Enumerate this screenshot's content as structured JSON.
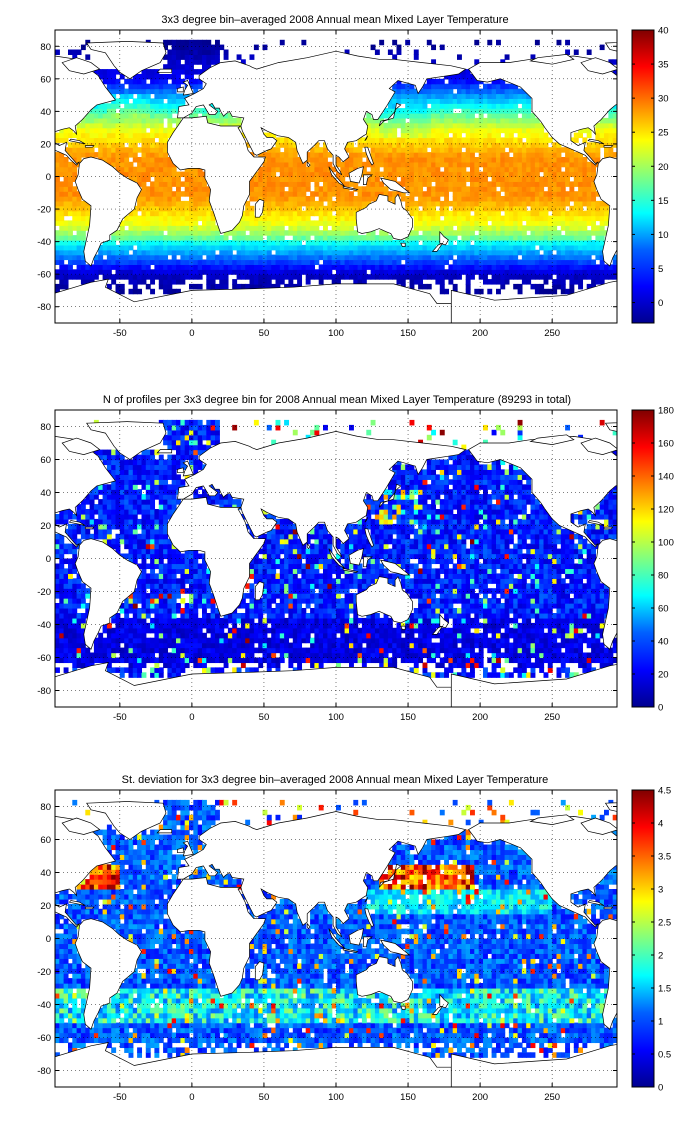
{
  "colormap": [
    "#00008f",
    "#0000ff",
    "#0080ff",
    "#00ffff",
    "#80ff80",
    "#ffff00",
    "#ff8000",
    "#ff0000",
    "#800000"
  ],
  "chart_data": [
    {
      "type": "heatmap",
      "title": "3x3 degree bin–averaged 2008 Annual mean Mixed Layer Temperature",
      "xlabel": "",
      "ylabel": "",
      "xlim": [
        -95,
        295
      ],
      "ylim": [
        -90,
        90
      ],
      "x_ticks": [
        "-50",
        "0",
        "50",
        "100",
        "150",
        "200",
        "250"
      ],
      "y_ticks": [
        "80",
        "60",
        "40",
        "20",
        "0",
        "-20",
        "-40",
        "-60",
        "-80"
      ],
      "colorbar": {
        "range": [
          -3,
          40
        ],
        "ticks": [
          "40",
          "35",
          "30",
          "25",
          "20",
          "15",
          "10",
          "5",
          "0"
        ]
      },
      "grid": true,
      "field": "mixed_layer_temperature",
      "bin_deg": 3
    },
    {
      "type": "heatmap",
      "title": "N of profiles per 3x3 degree bin for 2008 Annual mean Mixed Layer Temperature  (89293 in total)",
      "xlabel": "",
      "ylabel": "",
      "xlim": [
        -95,
        295
      ],
      "ylim": [
        -90,
        90
      ],
      "x_ticks": [
        "-50",
        "0",
        "50",
        "100",
        "150",
        "200",
        "250"
      ],
      "y_ticks": [
        "80",
        "60",
        "40",
        "20",
        "0",
        "-20",
        "-40",
        "-60",
        "-80"
      ],
      "colorbar": {
        "range": [
          0,
          180
        ],
        "ticks": [
          "180",
          "160",
          "140",
          "120",
          "100",
          "80",
          "60",
          "40",
          "20",
          "0"
        ]
      },
      "grid": true,
      "field": "profile_count",
      "bin_deg": 3
    },
    {
      "type": "heatmap",
      "title": "St. deviation for 3x3 degree bin–averaged 2008 Annual mean Mixed Layer Temperature",
      "xlabel": "",
      "ylabel": "",
      "xlim": [
        -95,
        295
      ],
      "ylim": [
        -90,
        90
      ],
      "x_ticks": [
        "-50",
        "0",
        "50",
        "100",
        "150",
        "200",
        "250"
      ],
      "y_ticks": [
        "80",
        "60",
        "40",
        "20",
        "0",
        "-20",
        "-40",
        "-60",
        "-80"
      ],
      "colorbar": {
        "range": [
          0,
          4.5
        ],
        "ticks": [
          "4.5",
          "4",
          "3.5",
          "3",
          "2.5",
          "2",
          "1.5",
          "1",
          "0.5",
          "0"
        ]
      },
      "grid": true,
      "field": "temperature_std",
      "bin_deg": 3
    }
  ]
}
